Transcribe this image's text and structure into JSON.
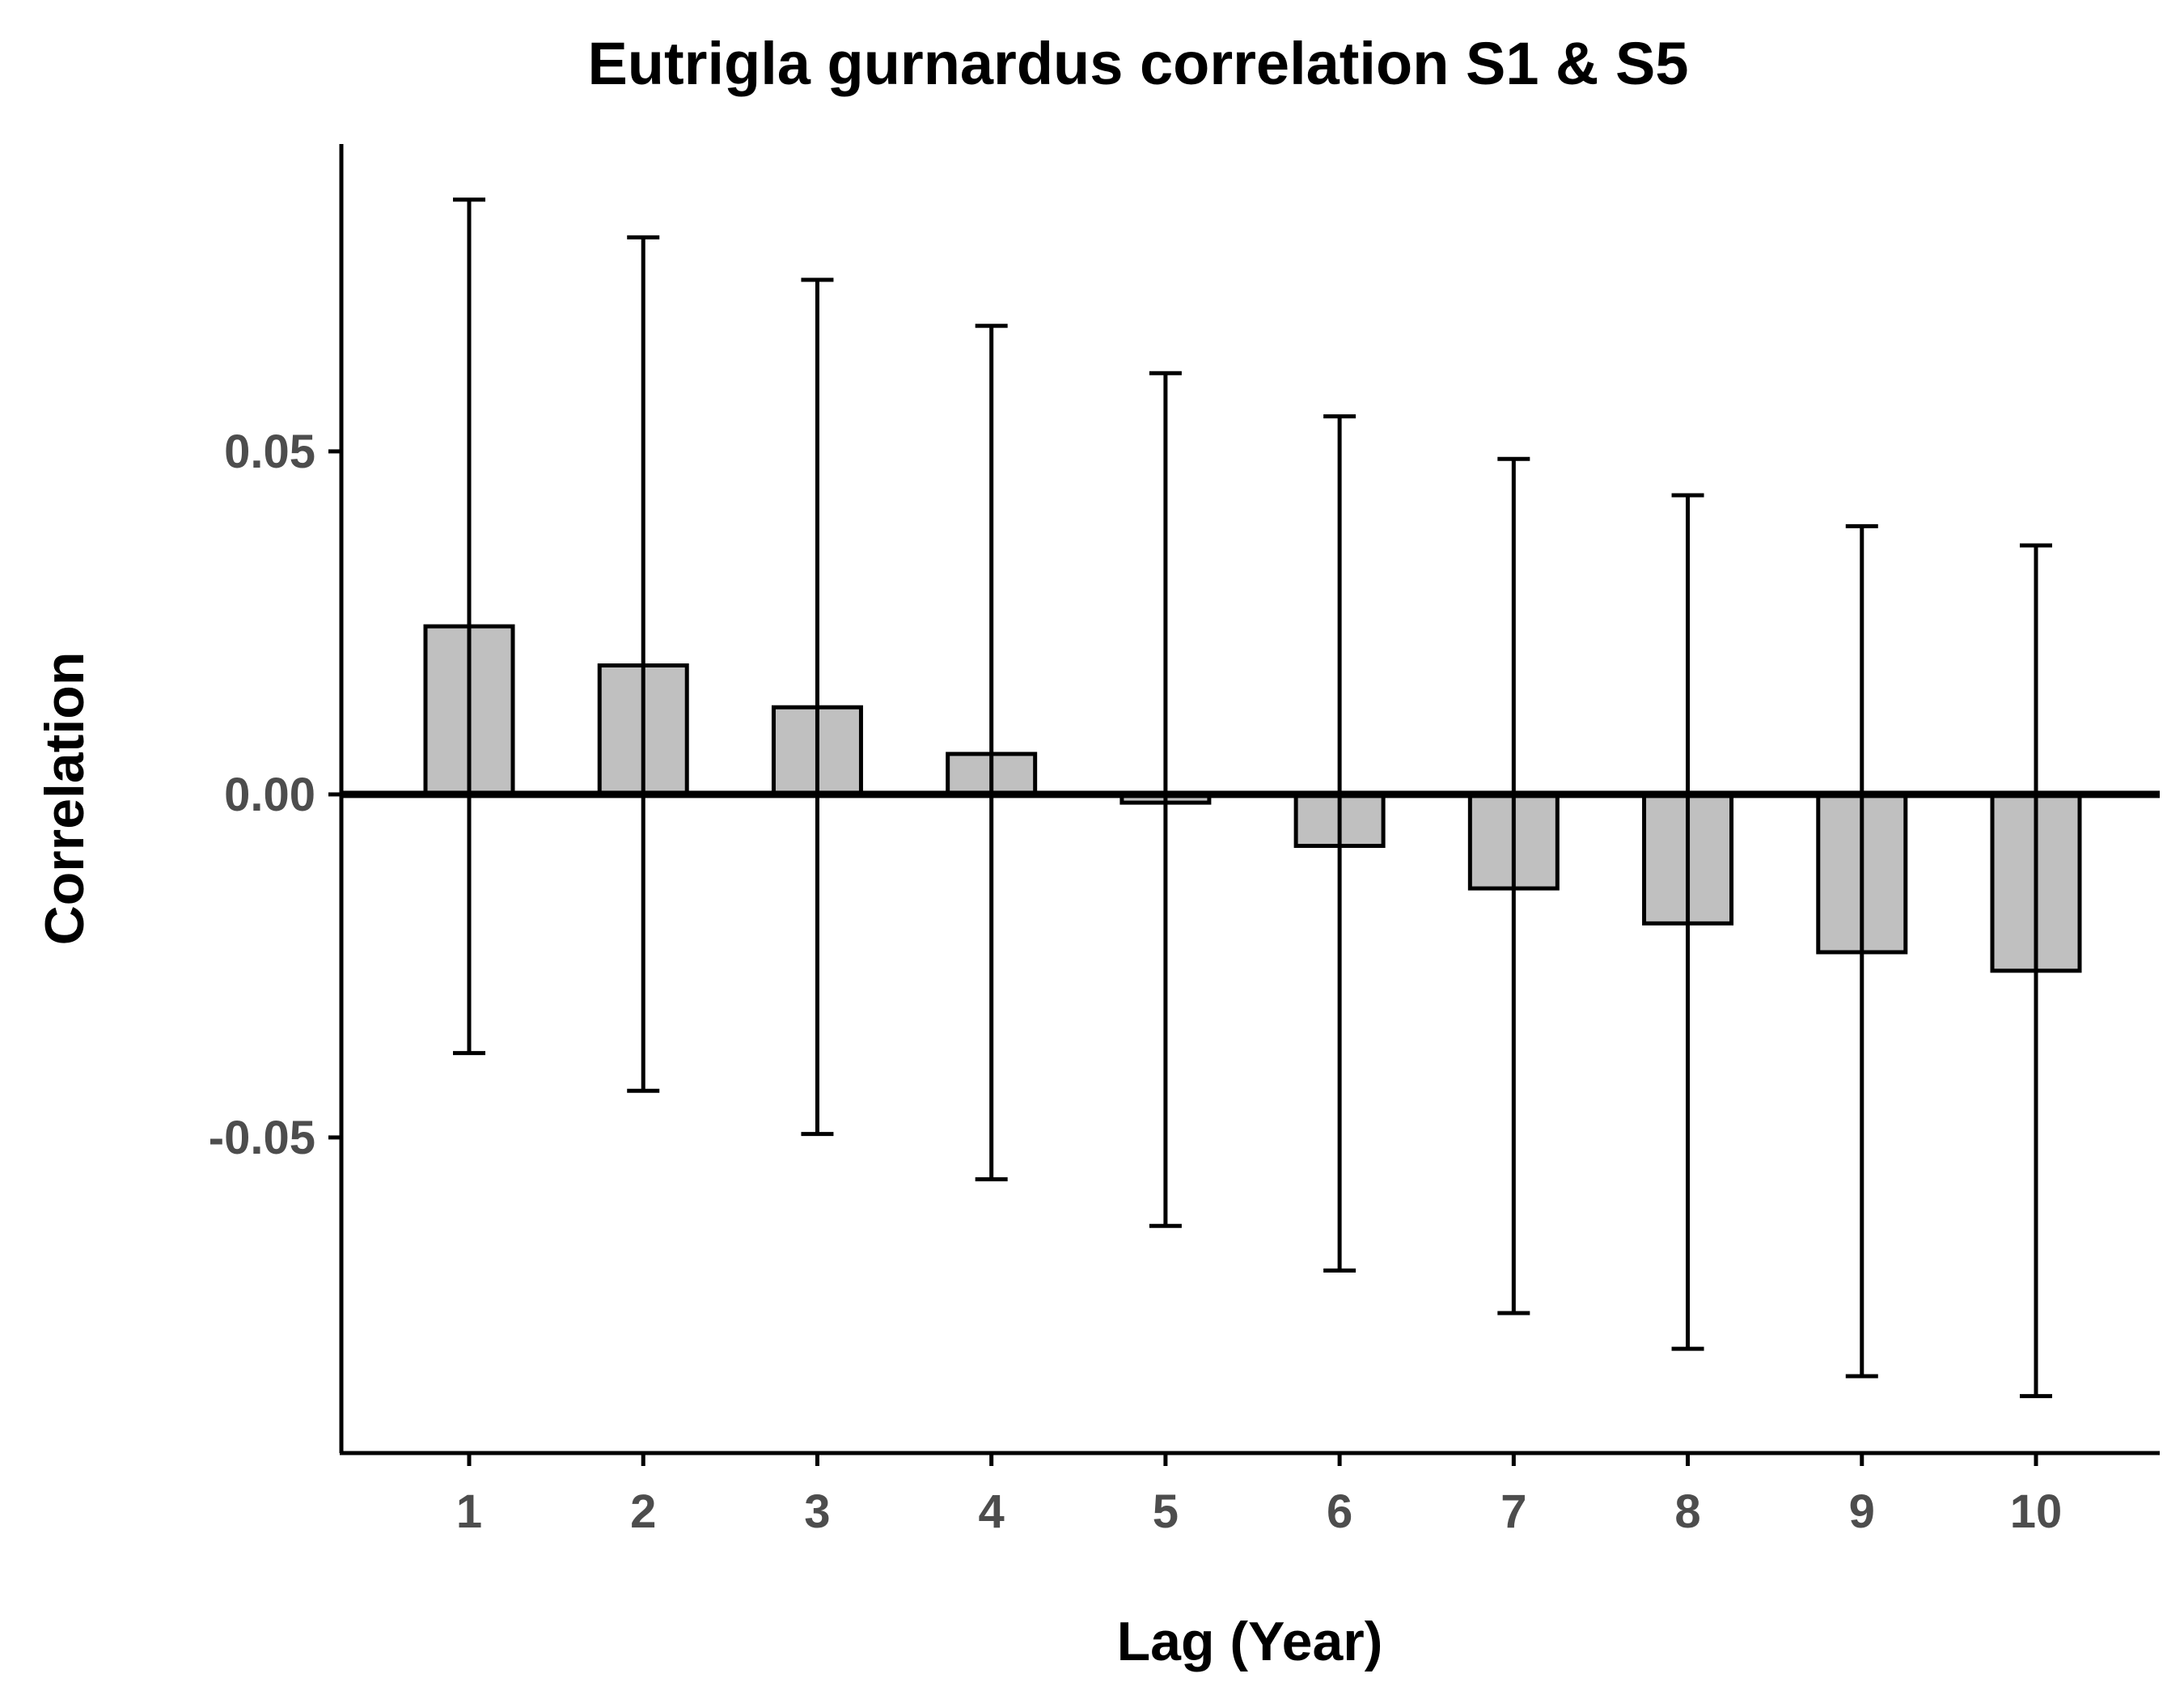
{
  "chart_data": {
    "type": "bar",
    "title": "Eutrigla gurnardus correlation S1 & S5",
    "xlabel": "Lag (Year)",
    "ylabel": "Correlation",
    "categories": [
      "1",
      "2",
      "3",
      "4",
      "5",
      "6",
      "7",
      "8",
      "9",
      "10"
    ],
    "values": [
      0.0245,
      0.0188,
      0.0127,
      0.0059,
      -0.0012,
      -0.0075,
      -0.0137,
      -0.0188,
      -0.023,
      -0.0257
    ],
    "error_low": [
      -0.0377,
      -0.0432,
      -0.0495,
      -0.0561,
      -0.0629,
      -0.0694,
      -0.0756,
      -0.0808,
      -0.0848,
      -0.0877
    ],
    "error_high": [
      0.0867,
      0.0812,
      0.075,
      0.0683,
      0.0614,
      0.0551,
      0.0489,
      0.0436,
      0.0391,
      0.0363
    ],
    "ylim": [
      -0.096,
      0.0948
    ],
    "yticks": [
      {
        "value": -0.05,
        "label": "-0.05"
      },
      {
        "value": 0,
        "label": "0.00"
      },
      {
        "value": 0.05,
        "label": "0.05"
      }
    ],
    "bar_fill": "#c0c0c0",
    "bar_stroke": "#000000",
    "zero_line": true,
    "grid": false
  }
}
